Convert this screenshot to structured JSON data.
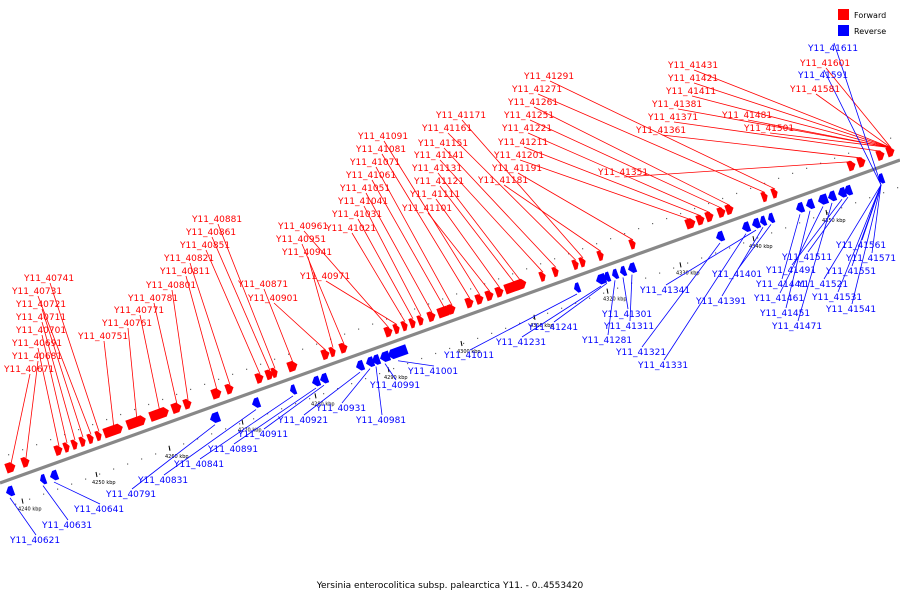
{
  "legend": {
    "forward_label": "Forward",
    "reverse_label": "Reverse",
    "forward_color": "#ff0000",
    "reverse_color": "#0000ff"
  },
  "caption": "Yersinia enterocolitica subsp. palearctica Y11. - 0..4553420",
  "axis": {
    "backbone_color": "#888888",
    "tick_labels": [
      "4240 kbp",
      "4250 kbp",
      "4260 kbp",
      "4270 kbp",
      "4280 kbp",
      "4290 kbp",
      "4300 kbp",
      "4310 kbp",
      "4320 kbp",
      "4330 kbp",
      "4340 kbp",
      "4350 kbp"
    ]
  },
  "forward_labels": [
    "Y11_40671",
    "Y11_40681",
    "Y11_40691",
    "Y11_40701",
    "Y11_40711",
    "Y11_40721",
    "Y11_40731",
    "Y11_40741",
    "Y11_40751",
    "Y11_40761",
    "Y11_40771",
    "Y11_40781",
    "Y11_40801",
    "Y11_40811",
    "Y11_40821",
    "Y11_40851",
    "Y11_40861",
    "Y11_40881",
    "Y11_40871",
    "Y11_40901",
    "Y11_40941",
    "Y11_40951",
    "Y11_40961",
    "Y11_40971",
    "Y11_41021",
    "Y11_41031",
    "Y11_41041",
    "Y11_41051",
    "Y11_41061",
    "Y11_41071",
    "Y11_41081",
    "Y11_41091",
    "Y11_41101",
    "Y11_41111",
    "Y11_41121",
    "Y11_41131",
    "Y11_41141",
    "Y11_41151",
    "Y11_41161",
    "Y11_41171",
    "Y11_41181",
    "Y11_41191",
    "Y11_41201",
    "Y11_41211",
    "Y11_41221",
    "Y11_41251",
    "Y11_41261",
    "Y11_41271",
    "Y11_41291",
    "Y11_41351",
    "Y11_41361",
    "Y11_41371",
    "Y11_41381",
    "Y11_41411",
    "Y11_41421",
    "Y11_41431",
    "Y11_41481",
    "Y11_41501",
    "Y11_41581",
    "Y11_41601"
  ],
  "reverse_labels": [
    "Y11_40621",
    "Y11_40631",
    "Y11_40641",
    "Y11_40791",
    "Y11_40831",
    "Y11_40841",
    "Y11_40891",
    "Y11_40911",
    "Y11_40921",
    "Y11_40931",
    "Y11_40981",
    "Y11_40991",
    "Y11_41001",
    "Y11_41011",
    "Y11_41231",
    "Y11_41241",
    "Y11_41281",
    "Y11_41301",
    "Y11_41311",
    "Y11_41321",
    "Y11_41331",
    "Y11_41341",
    "Y11_41391",
    "Y11_41401",
    "Y11_41441",
    "Y11_41451",
    "Y11_41461",
    "Y11_41471",
    "Y11_41491",
    "Y11_41511",
    "Y11_41521",
    "Y11_41531",
    "Y11_41541",
    "Y11_41551",
    "Y11_41561",
    "Y11_41571",
    "Y11_41591",
    "Y11_41611"
  ]
}
